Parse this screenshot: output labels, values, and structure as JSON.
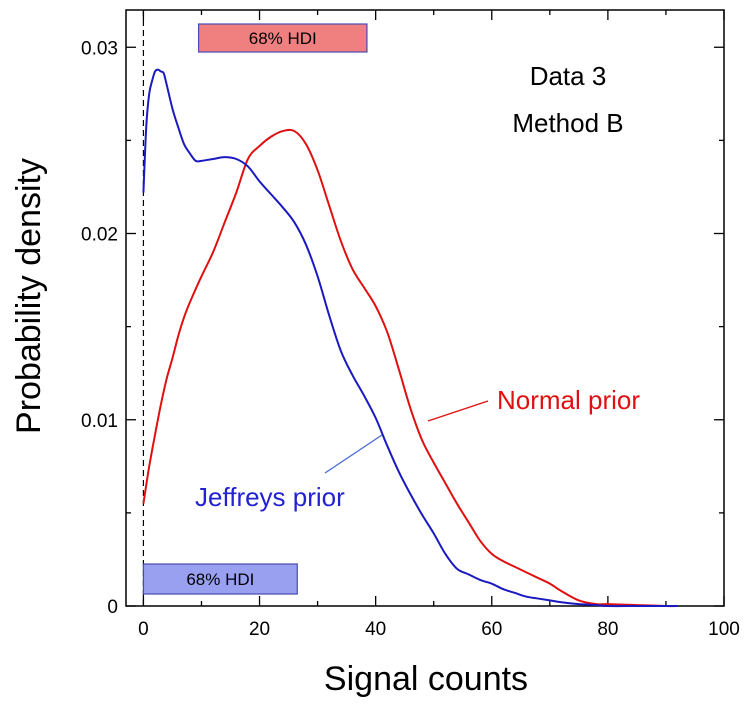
{
  "chart_data": {
    "type": "line",
    "title": "",
    "xlabel": "Signal counts",
    "ylabel": "Probability density",
    "xlim": [
      -3,
      100
    ],
    "ylim": [
      0,
      0.032
    ],
    "x_ticks": [
      0,
      20,
      40,
      60,
      80,
      100
    ],
    "x_tick_labels": [
      "0",
      "20",
      "40",
      "60",
      "80",
      "100"
    ],
    "y_ticks": [
      0,
      0.01,
      0.02,
      0.03
    ],
    "y_tick_labels": [
      "0",
      "0.01",
      "0.02",
      "0.03"
    ],
    "y_minor_ticks": [
      0.005,
      0.015,
      0.025
    ],
    "x_minor_ticks": [
      10,
      30,
      50,
      70,
      90
    ],
    "grid": false,
    "zero_line": {
      "x": 0,
      "style": "dashed"
    },
    "series": [
      {
        "name": "Normal prior",
        "color": "#e01010",
        "x": [
          0,
          1,
          2,
          3,
          4,
          5,
          6,
          7,
          8,
          10,
          12,
          14,
          16,
          18,
          20,
          22,
          24,
          26,
          28,
          30,
          32,
          34,
          36,
          38,
          40,
          42,
          44,
          46,
          48,
          50,
          52,
          54,
          56,
          58,
          60,
          62,
          64,
          66,
          68,
          70,
          72,
          75,
          78,
          80,
          85,
          90,
          92
        ],
        "y": [
          0.0055,
          0.0075,
          0.0092,
          0.0108,
          0.0122,
          0.0133,
          0.0145,
          0.0155,
          0.0163,
          0.0177,
          0.019,
          0.0206,
          0.0222,
          0.024,
          0.0247,
          0.0252,
          0.0255,
          0.0255,
          0.0248,
          0.0234,
          0.0215,
          0.0196,
          0.0181,
          0.0171,
          0.0161,
          0.0147,
          0.0127,
          0.0106,
          0.0089,
          0.0077,
          0.0066,
          0.0055,
          0.0045,
          0.0035,
          0.0028,
          0.0024,
          0.0021,
          0.0018,
          0.0015,
          0.0012,
          0.0008,
          0.0003,
          0.0001,
          0.0001,
          5e-05,
          0.0,
          0.0
        ]
      },
      {
        "name": "Jeffreys prior",
        "color": "#1a1ac0",
        "x": [
          0,
          0.5,
          1,
          1.5,
          2,
          2.5,
          3,
          3.5,
          4,
          5,
          6,
          7,
          8,
          9,
          10,
          12,
          14,
          16,
          18,
          20,
          22,
          24,
          26,
          28,
          30,
          32,
          34,
          36,
          38,
          40,
          42,
          44,
          46,
          48,
          50,
          52,
          54,
          56,
          58,
          60,
          62,
          64,
          66,
          68,
          70,
          72,
          75,
          78,
          80,
          85,
          90,
          92
        ],
        "y": [
          0.0222,
          0.0258,
          0.0275,
          0.0282,
          0.0287,
          0.0288,
          0.0287,
          0.0286,
          0.028,
          0.0267,
          0.0257,
          0.0248,
          0.0243,
          0.0239,
          0.0239,
          0.024,
          0.0241,
          0.024,
          0.0236,
          0.0228,
          0.0221,
          0.0214,
          0.0206,
          0.0194,
          0.0177,
          0.0156,
          0.0137,
          0.0124,
          0.0113,
          0.0101,
          0.0086,
          0.0072,
          0.006,
          0.0049,
          0.0039,
          0.0028,
          0.002,
          0.0017,
          0.0014,
          0.0012,
          0.0009,
          0.0007,
          0.0005,
          0.0004,
          0.0003,
          0.0002,
          0.0001,
          5e-05,
          0.0,
          0.0,
          0.0,
          0.0
        ]
      }
    ],
    "annotations": {
      "panel_label_line1": "Data 3",
      "panel_label_line2": "Method B",
      "normal_label": "Normal prior",
      "jeffreys_label": "Jeffreys prior",
      "hdi_normal": {
        "label": "68% HDI",
        "x_start": 9.5,
        "x_end": 38.5,
        "fill": "#f08080"
      },
      "hdi_jeffreys": {
        "label": "68% HDI",
        "x_start": 0,
        "x_end": 26.5,
        "fill": "#9aa0f0"
      }
    }
  }
}
